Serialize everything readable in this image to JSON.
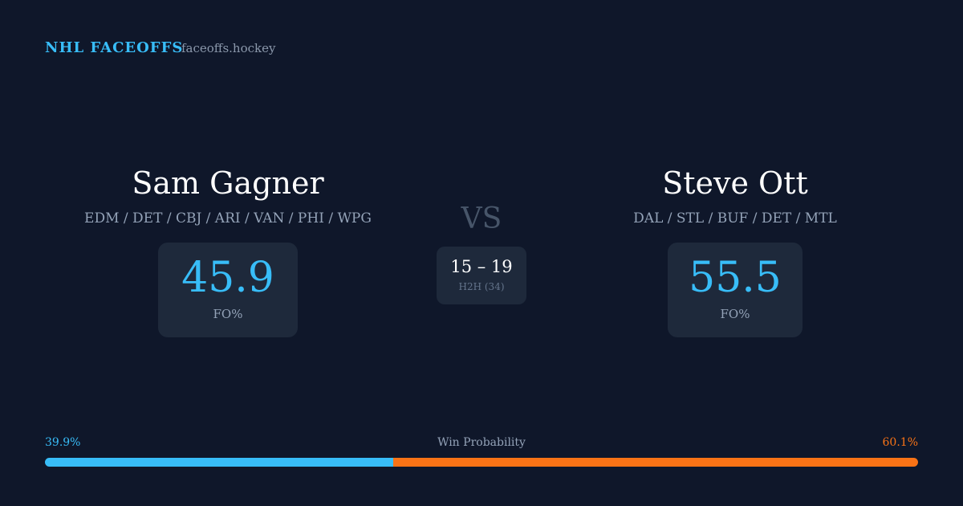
{
  "header": {
    "title": "NHL FACEOFFS",
    "site": "faceoffs.hockey"
  },
  "players": [
    {
      "name": "Sam Gagner",
      "teams": "EDM / DET / CBJ / ARI / VAN / PHI / WPG",
      "stat": "45.9",
      "stat_label": "FO%"
    },
    {
      "name": "Steve Ott",
      "teams": "DAL / STL / BUF / DET / MTL",
      "stat": "55.5",
      "stat_label": "FO%"
    }
  ],
  "versus": {
    "label": "VS",
    "score": "15 – 19",
    "h2h": "H2H (34)"
  },
  "win_probability": {
    "title": "Win Probability",
    "values": [
      39.9,
      60.1
    ],
    "value_labels": [
      "39.9%",
      "60.1%"
    ],
    "colors": [
      "#38bdf8",
      "#f97316"
    ]
  }
}
